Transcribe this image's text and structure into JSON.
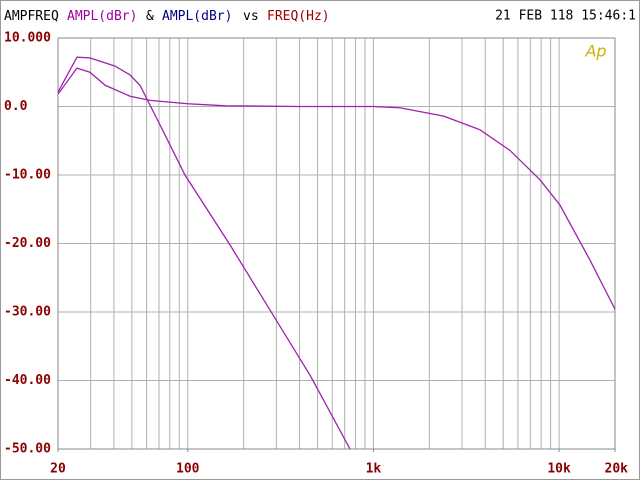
{
  "chart_data": {
    "type": "line",
    "title": "AMPFREQ",
    "joiner": "&",
    "versus": "vs",
    "x_label": "FREQ(Hz)",
    "timestamp": "21 FEB 118 15:46:1",
    "logo": "Ap",
    "xlog": true,
    "grid": true,
    "xlim": [
      20,
      20000
    ],
    "ylim": [
      -50,
      10
    ],
    "xticks": [
      20,
      100,
      {
        "value": 1000,
        "label": "1k"
      },
      {
        "value": 10000,
        "label": "10k"
      },
      {
        "value": 20000,
        "label": "20k"
      }
    ],
    "xgrid": [
      20,
      30,
      40,
      50,
      60,
      70,
      80,
      90,
      100,
      200,
      300,
      400,
      500,
      600,
      700,
      800,
      900,
      1000,
      2000,
      3000,
      4000,
      5000,
      6000,
      7000,
      8000,
      9000,
      10000,
      20000
    ],
    "yticks": [
      {
        "value": 10,
        "label": "10.000"
      },
      {
        "value": 0,
        "label": "0.0"
      },
      {
        "value": -10,
        "label": "-10.00"
      },
      {
        "value": -20,
        "label": "-20.00"
      },
      {
        "value": -30,
        "label": "-30.00"
      },
      {
        "value": -40,
        "label": "-40.00"
      },
      {
        "value": -50,
        "label": "-50.00"
      }
    ],
    "series": [
      {
        "name": "AMPL(dBr)",
        "color": "#a020b0",
        "label_color": "#a000a0",
        "x": [
          20,
          25.3,
          29.7,
          40.6,
          48.9,
          55.3,
          62.6,
          70.9,
          96.6,
          168.8,
          277,
          455,
          748
        ],
        "values": [
          2.1,
          7.2,
          7.1,
          5.9,
          4.6,
          3.1,
          0.2,
          -2.7,
          -10,
          -20.2,
          -29.7,
          -39.2,
          -50
        ]
      },
      {
        "name": "AMPL(dBr)",
        "color": "#a020b0",
        "label_color": "#000080",
        "x": [
          20,
          25.3,
          29.7,
          35.9,
          48.9,
          62.6,
          100,
          160,
          400,
          1000,
          1400,
          2390,
          3750,
          5430,
          7890,
          10110,
          14650,
          20000
        ],
        "values": [
          1.8,
          5.6,
          5.0,
          3.1,
          1.5,
          0.9,
          0.4,
          0.1,
          0,
          0,
          -0.2,
          -1.4,
          -3.4,
          -6.4,
          -10.7,
          -14.4,
          -22.4,
          -29.6
        ]
      }
    ]
  }
}
